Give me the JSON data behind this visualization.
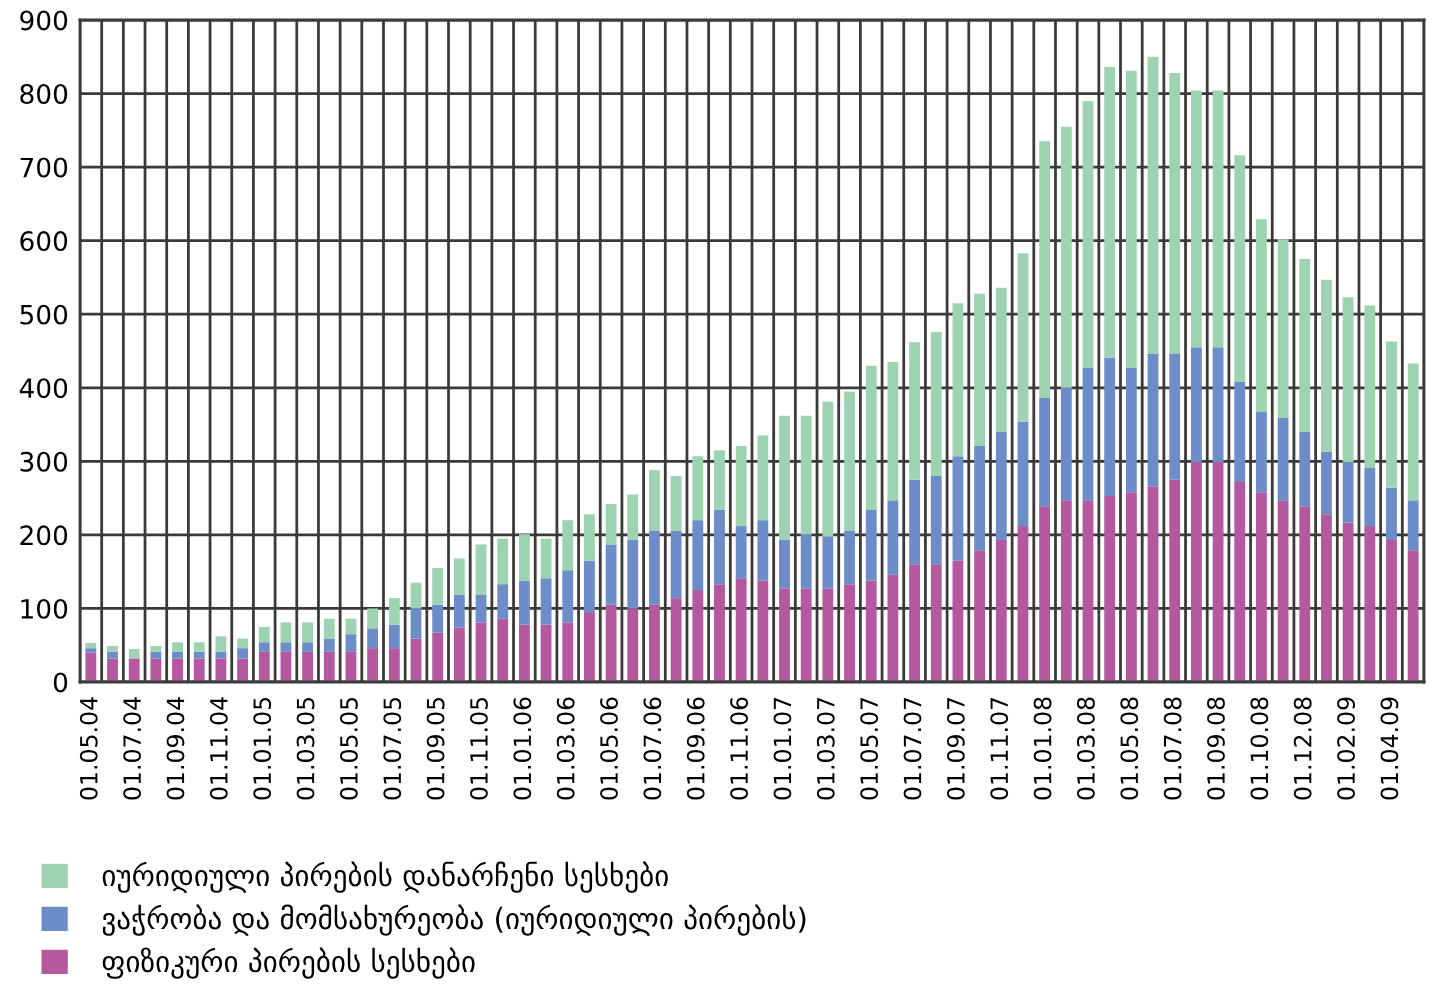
{
  "chart_data": {
    "type": "bar",
    "stacked": true,
    "categories": [
      "01.05.04",
      null,
      "01.07.04",
      null,
      "01.09.04",
      null,
      "01.11.04",
      null,
      "01.01.05",
      null,
      "01.03.05",
      null,
      "01.05.05",
      null,
      "01.07.05",
      null,
      "01.09.05",
      null,
      "01.11.05",
      null,
      "01.01.06",
      null,
      "01.03.06",
      null,
      "01.05.06",
      null,
      "01.07.06",
      null,
      "01.09.06",
      null,
      "01.11.06",
      null,
      "01.01.07",
      null,
      "01.03.07",
      null,
      "01.05.07",
      null,
      "01.07.07",
      null,
      "01.09.07",
      null,
      "01.11.07",
      null,
      "01.01.08",
      null,
      "01.03.08",
      null,
      "01.05.08",
      null,
      "01.07.08",
      null,
      "01.09.08",
      null,
      "01.10.08",
      null,
      "01.12.08",
      null,
      "01.02.09",
      null,
      "01.04.09",
      null
    ],
    "series": [
      {
        "name": "ფიზიკური პირების სესხები",
        "color": "#b4589f",
        "values": [
          40,
          32,
          32,
          32,
          32,
          32,
          32,
          32,
          41,
          41,
          41,
          41,
          41,
          46,
          46,
          59,
          67,
          74,
          81,
          86,
          78,
          78,
          81,
          95,
          105,
          100,
          105,
          114,
          125,
          133,
          141,
          138,
          127,
          127,
          127,
          133,
          138,
          146,
          160,
          160,
          165,
          179,
          193,
          212,
          239,
          247,
          247,
          253,
          258,
          266,
          275,
          299,
          299,
          272,
          258,
          247,
          239,
          228,
          217,
          212,
          193,
          179
        ]
      },
      {
        "name": "ვაჭრობა და მომსახურეობა (იურიდიული პირების)",
        "color": "#6c8dc8",
        "values": [
          6,
          9,
          0,
          9,
          9,
          9,
          9,
          14,
          13,
          13,
          13,
          18,
          24,
          27,
          32,
          41,
          38,
          45,
          38,
          47,
          60,
          63,
          71,
          70,
          82,
          93,
          101,
          92,
          95,
          101,
          71,
          82,
          66,
          74,
          71,
          73,
          96,
          101,
          115,
          120,
          142,
          142,
          147,
          142,
          147,
          153,
          180,
          188,
          169,
          180,
          171,
          156,
          156,
          136,
          109,
          112,
          101,
          85,
          82,
          79,
          71,
          68
        ]
      },
      {
        "name": "იურიდიული პირების დანარჩენი სესხები",
        "color": "#9ed3b2",
        "values": [
          7,
          8,
          13,
          8,
          13,
          13,
          21,
          13,
          21,
          27,
          27,
          27,
          21,
          27,
          36,
          35,
          50,
          49,
          68,
          62,
          63,
          54,
          68,
          63,
          55,
          62,
          82,
          74,
          87,
          81,
          109,
          115,
          169,
          161,
          183,
          189,
          196,
          188,
          187,
          196,
          208,
          207,
          196,
          229,
          349,
          355,
          363,
          395,
          404,
          404,
          382,
          349,
          349,
          308,
          262,
          243,
          235,
          234,
          224,
          221,
          199,
          186
        ]
      }
    ],
    "ylim": [
      0,
      900
    ],
    "yticks": [
      0,
      100,
      200,
      300,
      400,
      500,
      600,
      700,
      800,
      900
    ],
    "grid": true,
    "legend": "bottom"
  }
}
